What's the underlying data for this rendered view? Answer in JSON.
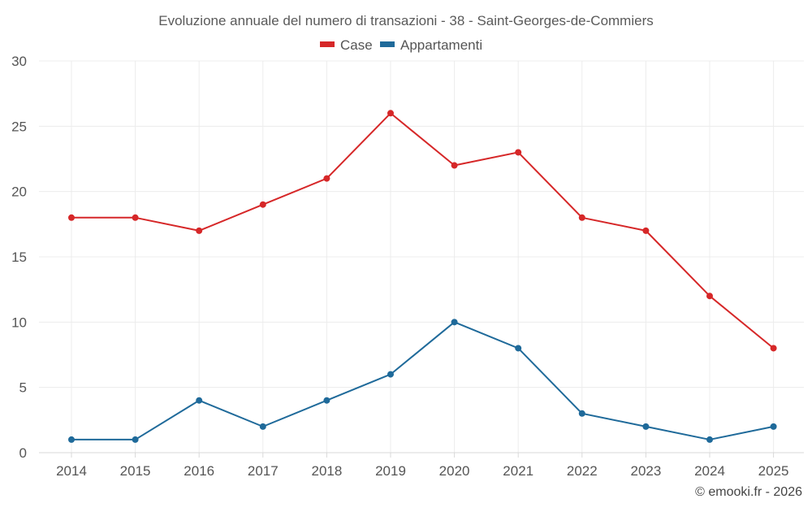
{
  "chart_data": {
    "type": "line",
    "title": "Evoluzione annuale del numero di transazioni - 38 - Saint-Georges-de-Commiers",
    "categories": [
      "2014",
      "2015",
      "2016",
      "2017",
      "2018",
      "2019",
      "2020",
      "2021",
      "2022",
      "2023",
      "2024",
      "2025"
    ],
    "series": [
      {
        "name": "Case",
        "color": "#d62728",
        "values": [
          18,
          18,
          17,
          19,
          21,
          26,
          22,
          23,
          18,
          17,
          12,
          8
        ]
      },
      {
        "name": "Appartamenti",
        "color": "#1f6a9a",
        "values": [
          1,
          1,
          4,
          2,
          4,
          6,
          10,
          8,
          3,
          2,
          1,
          2
        ]
      }
    ],
    "yticks": [
      0,
      5,
      10,
      15,
      20,
      25,
      30
    ],
    "ylim": [
      0,
      30
    ],
    "xlabel": "",
    "ylabel": "",
    "grid": true,
    "legend_position": "top-center"
  },
  "credit": "© emooki.fr - 2026"
}
